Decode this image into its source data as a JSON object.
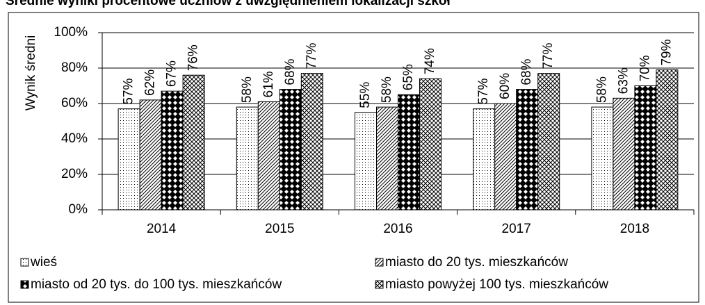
{
  "chart_data": {
    "type": "bar",
    "title": "Średnie wyniki procentowe uczniów z uwzględnieniem lokalizacji szkół",
    "y_label": "Wynik średni",
    "categories": [
      "2014",
      "2015",
      "2016",
      "2017",
      "2018"
    ],
    "series": [
      {
        "name": "wieś",
        "values": [
          57,
          58,
          55,
          57,
          58
        ],
        "value_labels": [
          "57%",
          "58%",
          "55%",
          "57%",
          "58%"
        ]
      },
      {
        "name": "miasto do 20 tys. mieszkańców",
        "values": [
          62,
          61,
          58,
          60,
          63
        ],
        "value_labels": [
          "62%",
          "61%",
          "58%",
          "60%",
          "63%"
        ]
      },
      {
        "name": "miasto od 20 tys. do 100 tys. mieszkańców",
        "values": [
          67,
          68,
          65,
          68,
          70
        ],
        "value_labels": [
          "67%",
          "68%",
          "65%",
          "68%",
          "70%"
        ]
      },
      {
        "name": "miasto powyżej 100 tys. mieszkańców",
        "values": [
          76,
          77,
          74,
          77,
          79
        ],
        "value_labels": [
          "76%",
          "77%",
          "74%",
          "77%",
          "79%"
        ]
      }
    ],
    "ylim": [
      0,
      100
    ],
    "yticks": [
      {
        "value": 0,
        "label": "0%"
      },
      {
        "value": 20,
        "label": "20%"
      },
      {
        "value": 40,
        "label": "40%"
      },
      {
        "value": 60,
        "label": "60%"
      },
      {
        "value": 80,
        "label": "80%"
      },
      {
        "value": 100,
        "label": "100%"
      }
    ],
    "grid": true
  }
}
